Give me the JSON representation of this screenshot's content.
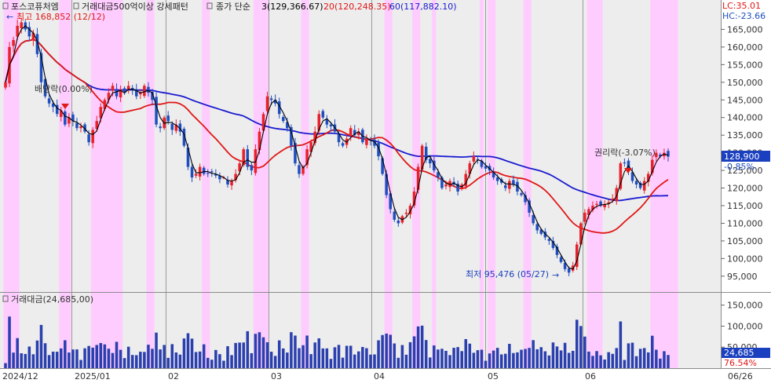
{
  "header": {
    "stock_name": "포스코퓨처엠",
    "condition": "거래대금500억이상 강세패턴",
    "ma_label": "종가 단순",
    "ma3": "3(129,366.67)",
    "ma20": "20(120,248.35)",
    "ma60": "60(117,882.10)",
    "lc": "LC:35.01",
    "hc": "HC:-23.66"
  },
  "colors": {
    "up": "#e8212b",
    "down": "#1f4fbf",
    "ma3": "#000000",
    "ma20": "#e01818",
    "ma60": "#1a1ad0",
    "highlight": "#ffccff",
    "axis_bg": "#ffffff",
    "price_tag": "#1a3fbf"
  },
  "annotations": {
    "high": "최고 168,852 (12/12)",
    "low": "최저 95,476 (05/27)",
    "ex_dividend": "배당락(0.00%)",
    "ex_rights": "권리락(-3.07%)"
  },
  "price_axis": {
    "ticks": [
      "165,000",
      "160,000",
      "155,000",
      "150,000",
      "145,000",
      "140,000",
      "135,000",
      "130,000",
      "125,000",
      "120,000",
      "115,000",
      "110,000",
      "105,000",
      "100,000",
      "95,000"
    ],
    "current_price": "128,900",
    "current_change": "-0.85%"
  },
  "volume_panel": {
    "title": "거래대금(24,685,00)",
    "ticks": [
      "150,000",
      "100,000",
      "50,000"
    ],
    "current_value": "24,685",
    "current_pct": "76.54%"
  },
  "x_axis": {
    "labels": [
      "2024/12",
      "2025/01",
      "02",
      "03",
      "04",
      "05",
      "06",
      "06/26"
    ]
  },
  "chart_data": {
    "type": "candlestick",
    "ylim": [
      90500,
      170000
    ],
    "volume_ylim": [
      0,
      170000
    ],
    "series": [
      {
        "name": "종가 단순 3",
        "values": [
          129366.67
        ]
      },
      {
        "name": "종가 단순 20",
        "values": [
          120248.35
        ]
      },
      {
        "name": "종가 단순 60",
        "values": [
          117882.1
        ]
      }
    ],
    "last_close": 128900,
    "last_change_pct": -0.85,
    "high": {
      "price": 168852,
      "date": "12/12"
    },
    "low": {
      "price": 95476,
      "date": "05/27"
    },
    "volume_last": 24685,
    "closes": [
      150000,
      160000,
      162000,
      166000,
      167000,
      165000,
      163000,
      164000,
      158000,
      150000,
      146000,
      144000,
      143000,
      141000,
      142000,
      138000,
      140000,
      139000,
      137000,
      137500,
      136000,
      133000,
      136500,
      139000,
      143000,
      145000,
      147000,
      149000,
      146000,
      148000,
      147000,
      149000,
      148000,
      146000,
      147000,
      149000,
      147000,
      145000,
      138000,
      137000,
      140000,
      139000,
      136500,
      138000,
      136000,
      132000,
      126000,
      123000,
      124000,
      126000,
      124000,
      124000,
      124500,
      123500,
      122500,
      123000,
      121000,
      122000,
      124000,
      127000,
      131000,
      126000,
      125000,
      131000,
      136000,
      141000,
      146000,
      145000,
      144000,
      141000,
      139000,
      137000,
      132000,
      127000,
      124000,
      126000,
      131000,
      133000,
      136000,
      141000,
      140000,
      138000,
      137500,
      136000,
      133000,
      132000,
      134000,
      137000,
      135000,
      136000,
      133000,
      134000,
      133500,
      132000,
      129000,
      124000,
      118000,
      114000,
      111000,
      110000,
      112000,
      113000,
      115000,
      119000,
      126000,
      132000,
      128000,
      127000,
      125000,
      123000,
      120000,
      121000,
      122000,
      121000,
      119000,
      121000,
      124000,
      127000,
      129000,
      128000,
      126000,
      125500,
      125000,
      123000,
      122000,
      121500,
      120000,
      122000,
      121000,
      119000,
      118000,
      116000,
      113000,
      110000,
      108000,
      107000,
      106000,
      105000,
      103000,
      101000,
      99000,
      97000,
      96000,
      98000,
      104000,
      110000,
      113000,
      114000,
      115000,
      115500,
      115000,
      115500,
      116000,
      117000,
      120000,
      127000,
      127000,
      125000,
      122000,
      121000,
      120000,
      122000,
      124000,
      128000,
      130000,
      129000,
      130000,
      128900
    ]
  }
}
